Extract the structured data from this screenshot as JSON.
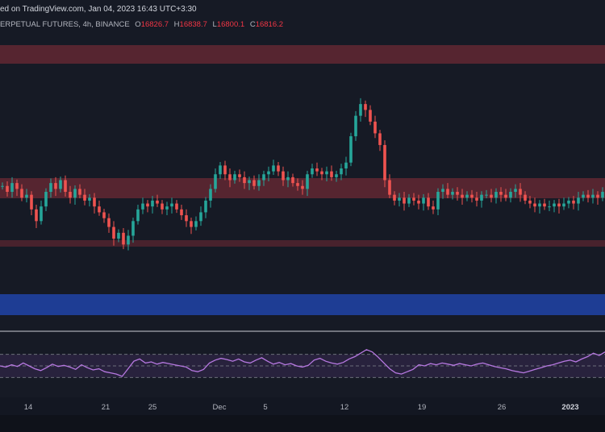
{
  "header": {
    "published": "ed on TradingView.com, Jan 04, 2023 16:43 UTC+3:30",
    "symbol": "ERPETUAL FUTURES, 4h, BINANCE",
    "ohlc": {
      "open_label": "O",
      "open": "16826.7",
      "high_label": "H",
      "high": "16838.7",
      "low_label": "L",
      "low": "16800.1",
      "close_label": "C",
      "close": "16816.2"
    }
  },
  "colors": {
    "background": "#161a25",
    "candle_up": "#26a69a",
    "candle_down": "#ef5350",
    "resistance_zone": "#5a2630",
    "support_zone": "#1f3f9a",
    "rsi_line": "#b678e0",
    "rsi_band": "#2a2440"
  },
  "chart_data": [
    {
      "type": "candlestick",
      "x_axis": {
        "ticks": [
          "14",
          "21",
          "25",
          "Dec",
          "5",
          "12",
          "19",
          "26",
          "2023"
        ]
      },
      "zones": [
        {
          "kind": "resistance",
          "color": "#5a2630"
        },
        {
          "kind": "resistance",
          "color": "#5a2630"
        },
        {
          "kind": "resistance-line",
          "color": "#5a2630"
        },
        {
          "kind": "support",
          "color": "#1f3f9a"
        }
      ],
      "series": [
        {
          "values": [
            0.48,
            0.46,
            0.49,
            0.47,
            0.44,
            0.45,
            0.4,
            0.36,
            0.41,
            0.46,
            0.49,
            0.47,
            0.5,
            0.46,
            0.44,
            0.47,
            0.45,
            0.43,
            0.44,
            0.41,
            0.39,
            0.37,
            0.34,
            0.3,
            0.32,
            0.28,
            0.31,
            0.36,
            0.4,
            0.42,
            0.41,
            0.43,
            0.42,
            0.4,
            0.41,
            0.42,
            0.4,
            0.38,
            0.36,
            0.34,
            0.36,
            0.39,
            0.43,
            0.47,
            0.52,
            0.55,
            0.52,
            0.5,
            0.52,
            0.51,
            0.49,
            0.5,
            0.48,
            0.5,
            0.52,
            0.53,
            0.55,
            0.53,
            0.5,
            0.51,
            0.49,
            0.48,
            0.47,
            0.52,
            0.54,
            0.53,
            0.52,
            0.53,
            0.51,
            0.52,
            0.54,
            0.56,
            0.65,
            0.72,
            0.76,
            0.74,
            0.7,
            0.66,
            0.62,
            0.5,
            0.45,
            0.43,
            0.44,
            0.42,
            0.44,
            0.43,
            0.42,
            0.44,
            0.41,
            0.4,
            0.46,
            0.47,
            0.45,
            0.46,
            0.45,
            0.44,
            0.45,
            0.44,
            0.43,
            0.45,
            0.45,
            0.44,
            0.46,
            0.45,
            0.44,
            0.46,
            0.47,
            0.45,
            0.43,
            0.42,
            0.41,
            0.42,
            0.41,
            0.41,
            0.42,
            0.41,
            0.42,
            0.43,
            0.42,
            0.44,
            0.45,
            0.44,
            0.45,
            0.44,
            0.46
          ]
        }
      ]
    },
    {
      "type": "line",
      "indicator": "RSI",
      "levels": [
        70,
        50,
        30
      ],
      "series": [
        {
          "values": [
            50,
            48,
            52,
            49,
            55,
            50,
            45,
            42,
            47,
            53,
            49,
            51,
            48,
            44,
            52,
            47,
            43,
            45,
            40,
            38,
            36,
            32,
            45,
            58,
            62,
            55,
            57,
            53,
            56,
            54,
            52,
            50,
            48,
            42,
            40,
            44,
            55,
            60,
            63,
            61,
            58,
            62,
            57,
            55,
            60,
            64,
            58,
            53,
            56,
            52,
            54,
            50,
            48,
            51,
            60,
            63,
            58,
            55,
            53,
            56,
            62,
            66,
            72,
            78,
            74,
            65,
            55,
            45,
            38,
            36,
            40,
            44,
            52,
            50,
            54,
            52,
            55,
            53,
            51,
            54,
            52,
            50,
            53,
            55,
            52,
            49,
            47,
            45,
            42,
            40,
            38,
            41,
            44,
            47,
            50,
            52,
            55,
            58,
            60,
            57,
            62,
            66,
            72,
            68,
            74
          ]
        }
      ]
    }
  ]
}
